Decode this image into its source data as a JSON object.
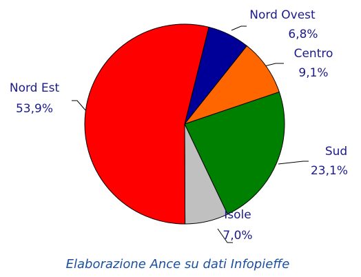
{
  "chart_data": {
    "type": "pie",
    "categories": [
      "Nord Ovest",
      "Centro",
      "Sud",
      "Isole",
      "Nord Est"
    ],
    "values": [
      6.8,
      9.1,
      23.1,
      7.0,
      53.9
    ],
    "value_labels": [
      "6,8%",
      "9,1%",
      "23,1%",
      "7,0%",
      "53,9%"
    ],
    "colors": [
      "#000099",
      "#ff6600",
      "#008000",
      "#c0c0c0",
      "#ff0000"
    ],
    "caption": "Elaborazione Ance su dati Infopieffe"
  }
}
